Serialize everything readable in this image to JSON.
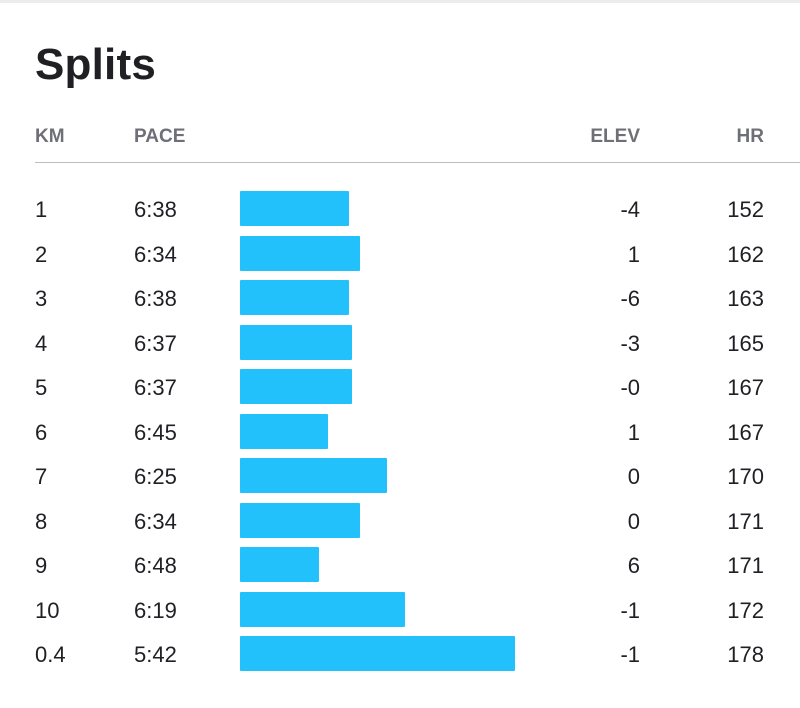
{
  "page": {
    "title": "Splits",
    "bar_color": "#22c1fb"
  },
  "header": {
    "km": "KM",
    "pace": "PACE",
    "elev": "ELEV",
    "hr": "HR"
  },
  "splits": [
    {
      "km": "1",
      "pace": "6:38",
      "pace_seconds": 398,
      "elev": "-4",
      "hr": "152"
    },
    {
      "km": "2",
      "pace": "6:34",
      "pace_seconds": 394,
      "elev": "1",
      "hr": "162"
    },
    {
      "km": "3",
      "pace": "6:38",
      "pace_seconds": 398,
      "elev": "-6",
      "hr": "163"
    },
    {
      "km": "4",
      "pace": "6:37",
      "pace_seconds": 397,
      "elev": "-3",
      "hr": "165"
    },
    {
      "km": "5",
      "pace": "6:37",
      "pace_seconds": 397,
      "elev": "-0",
      "hr": "167"
    },
    {
      "km": "6",
      "pace": "6:45",
      "pace_seconds": 405,
      "elev": "1",
      "hr": "167"
    },
    {
      "km": "7",
      "pace": "6:25",
      "pace_seconds": 385,
      "elev": "0",
      "hr": "170"
    },
    {
      "km": "8",
      "pace": "6:34",
      "pace_seconds": 394,
      "elev": "0",
      "hr": "171"
    },
    {
      "km": "9",
      "pace": "6:48",
      "pace_seconds": 408,
      "elev": "6",
      "hr": "171"
    },
    {
      "km": "10",
      "pace": "6:19",
      "pace_seconds": 379,
      "elev": "-1",
      "hr": "172"
    },
    {
      "km": "0.4",
      "pace": "5:42",
      "pace_seconds": 342,
      "elev": "-1",
      "hr": "178"
    }
  ]
}
